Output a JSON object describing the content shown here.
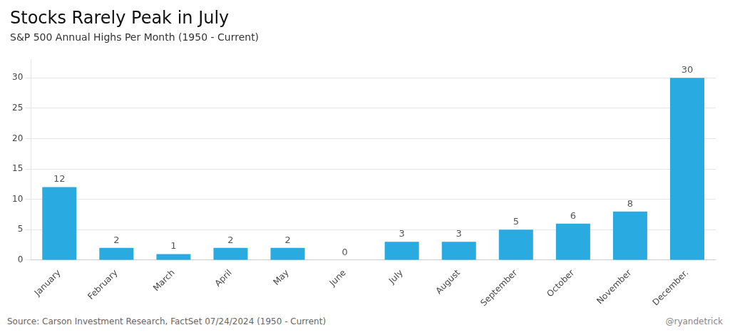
{
  "chart_data": {
    "type": "bar",
    "title": "Stocks Rarely Peak in July",
    "subtitle": "S&P 500 Annual Highs Per Month (1950 - Current)",
    "categories": [
      "January",
      "February",
      "March",
      "April",
      "May",
      "June",
      "July",
      "August",
      "September",
      "October",
      "November",
      "December."
    ],
    "values": [
      12,
      2,
      1,
      2,
      2,
      0,
      3,
      3,
      5,
      6,
      8,
      30
    ],
    "color": "#29ABE2",
    "ylim": [
      0,
      33
    ],
    "yticks": [
      0,
      5,
      10,
      15,
      20,
      25,
      30
    ],
    "grid": true,
    "data_labels": true,
    "annotations": [
      "Source: Carson Investment Research, FactSet 07/24/2024 (1950 - Current)",
      "@ryandetrick"
    ]
  }
}
